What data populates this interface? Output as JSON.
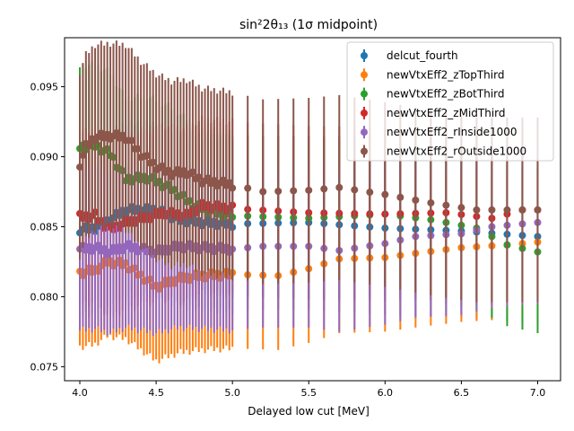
{
  "chart_data": {
    "type": "scatter",
    "title": "sin²2θ₁₃ (1σ midpoint)",
    "xlabel": "Delayed low cut [MeV]",
    "ylabel": "",
    "xlim": [
      3.9,
      7.15
    ],
    "ylim": [
      0.074,
      0.0985
    ],
    "x_ticks": [
      "4.0",
      "4.5",
      "5.0",
      "5.5",
      "6.0",
      "6.5",
      "7.0"
    ],
    "y_ticks": [
      "0.075",
      "0.080",
      "0.085",
      "0.090",
      "0.095"
    ],
    "grid": false,
    "legend_position": "top-right",
    "x_dense": [
      4.0,
      4.02,
      4.04,
      4.06,
      4.08,
      4.1,
      4.12,
      4.14,
      4.16,
      4.18,
      4.2,
      4.22,
      4.24,
      4.26,
      4.28,
      4.3,
      4.32,
      4.34,
      4.36,
      4.38,
      4.4,
      4.42,
      4.44,
      4.46,
      4.48,
      4.5,
      4.52,
      4.54,
      4.56,
      4.58,
      4.6,
      4.62,
      4.64,
      4.66,
      4.68,
      4.7,
      4.72,
      4.74,
      4.76,
      4.78,
      4.8,
      4.82,
      4.84,
      4.86,
      4.88,
      4.9,
      4.92,
      4.94,
      4.96,
      4.98,
      5.0
    ],
    "x_sparse": [
      5.1,
      5.2,
      5.3,
      5.4,
      5.5,
      5.6,
      5.7,
      5.8,
      5.9,
      6.0,
      6.1,
      6.2,
      6.3,
      6.4,
      6.5,
      6.6,
      6.7,
      6.8,
      6.9,
      7.0
    ],
    "series": [
      {
        "name": "delcut_fourth",
        "color": "#1f77b4",
        "anchors": [
          [
            4.0,
            0.0848
          ],
          [
            4.1,
            0.0849
          ],
          [
            4.2,
            0.0855
          ],
          [
            4.3,
            0.0862
          ],
          [
            4.5,
            0.0862
          ],
          [
            4.65,
            0.0855
          ],
          [
            4.8,
            0.0853
          ],
          [
            5.0,
            0.0852
          ],
          [
            5.5,
            0.0853
          ],
          [
            6.0,
            0.0849
          ],
          [
            6.5,
            0.0847
          ],
          [
            7.0,
            0.0843
          ]
        ],
        "err": 0.0062
      },
      {
        "name": "newVtxEff2_zTopThird",
        "color": "#ff7f0e",
        "anchors": [
          [
            4.0,
            0.0817
          ],
          [
            4.1,
            0.0819
          ],
          [
            4.18,
            0.0825
          ],
          [
            4.3,
            0.0823
          ],
          [
            4.5,
            0.0807
          ],
          [
            4.65,
            0.0813
          ],
          [
            4.8,
            0.0815
          ],
          [
            5.0,
            0.0816
          ],
          [
            5.3,
            0.0815
          ],
          [
            5.5,
            0.082
          ],
          [
            5.7,
            0.0827
          ],
          [
            6.0,
            0.0828
          ],
          [
            6.2,
            0.0831
          ],
          [
            6.5,
            0.0835
          ],
          [
            6.8,
            0.0837
          ],
          [
            7.0,
            0.0839
          ]
        ],
        "err": 0.0053
      },
      {
        "name": "newVtxEff2_zBotThird",
        "color": "#2ca02c",
        "anchors": [
          [
            4.0,
            0.0907
          ],
          [
            4.1,
            0.0908
          ],
          [
            4.2,
            0.0902
          ],
          [
            4.3,
            0.0884
          ],
          [
            4.45,
            0.0885
          ],
          [
            4.6,
            0.0877
          ],
          [
            4.75,
            0.0865
          ],
          [
            4.9,
            0.086
          ],
          [
            5.0,
            0.0858
          ],
          [
            5.5,
            0.0856
          ],
          [
            6.0,
            0.0859
          ],
          [
            6.3,
            0.0855
          ],
          [
            6.6,
            0.0849
          ],
          [
            6.8,
            0.0837
          ],
          [
            7.0,
            0.0832
          ]
        ],
        "err": 0.0058
      },
      {
        "name": "newVtxEff2_zMidThird",
        "color": "#d62728",
        "anchors": [
          [
            4.0,
            0.0857
          ],
          [
            4.1,
            0.0858
          ],
          [
            4.15,
            0.0852
          ],
          [
            4.2,
            0.0848
          ],
          [
            4.3,
            0.0853
          ],
          [
            4.45,
            0.0857
          ],
          [
            4.55,
            0.086
          ],
          [
            4.7,
            0.0858
          ],
          [
            4.8,
            0.0865
          ],
          [
            4.9,
            0.0864
          ],
          [
            5.0,
            0.0863
          ],
          [
            5.5,
            0.086
          ],
          [
            6.0,
            0.0859
          ],
          [
            6.4,
            0.086
          ],
          [
            6.7,
            0.0856
          ],
          [
            6.9,
            0.0862
          ]
        ],
        "err": 0.0062
      },
      {
        "name": "newVtxEff2_rInside1000",
        "color": "#9467bd",
        "anchors": [
          [
            4.0,
            0.0834
          ],
          [
            4.1,
            0.0835
          ],
          [
            4.2,
            0.0832
          ],
          [
            4.3,
            0.0836
          ],
          [
            4.5,
            0.0832
          ],
          [
            4.65,
            0.0836
          ],
          [
            4.8,
            0.0835
          ],
          [
            5.0,
            0.0834
          ],
          [
            5.2,
            0.0836
          ],
          [
            5.5,
            0.0836
          ],
          [
            5.7,
            0.0833
          ],
          [
            6.0,
            0.0838
          ],
          [
            6.2,
            0.0843
          ],
          [
            6.5,
            0.0845
          ],
          [
            6.7,
            0.085
          ],
          [
            7.0,
            0.0853
          ]
        ],
        "err": 0.0058
      },
      {
        "name": "newVtxEff2_rOutside1000",
        "color": "#8c564b",
        "anchors": [
          [
            4.0,
            0.0895
          ],
          [
            4.04,
            0.0907
          ],
          [
            4.1,
            0.0914
          ],
          [
            4.2,
            0.0915
          ],
          [
            4.3,
            0.0914
          ],
          [
            4.4,
            0.0902
          ],
          [
            4.5,
            0.0893
          ],
          [
            4.6,
            0.0888
          ],
          [
            4.7,
            0.0889
          ],
          [
            4.8,
            0.0883
          ],
          [
            5.0,
            0.088
          ],
          [
            5.2,
            0.0875
          ],
          [
            5.5,
            0.0876
          ],
          [
            5.7,
            0.0878
          ],
          [
            6.0,
            0.0873
          ],
          [
            6.3,
            0.0867
          ],
          [
            6.6,
            0.0862
          ],
          [
            7.0,
            0.0862
          ]
        ],
        "err": 0.0066
      }
    ]
  }
}
